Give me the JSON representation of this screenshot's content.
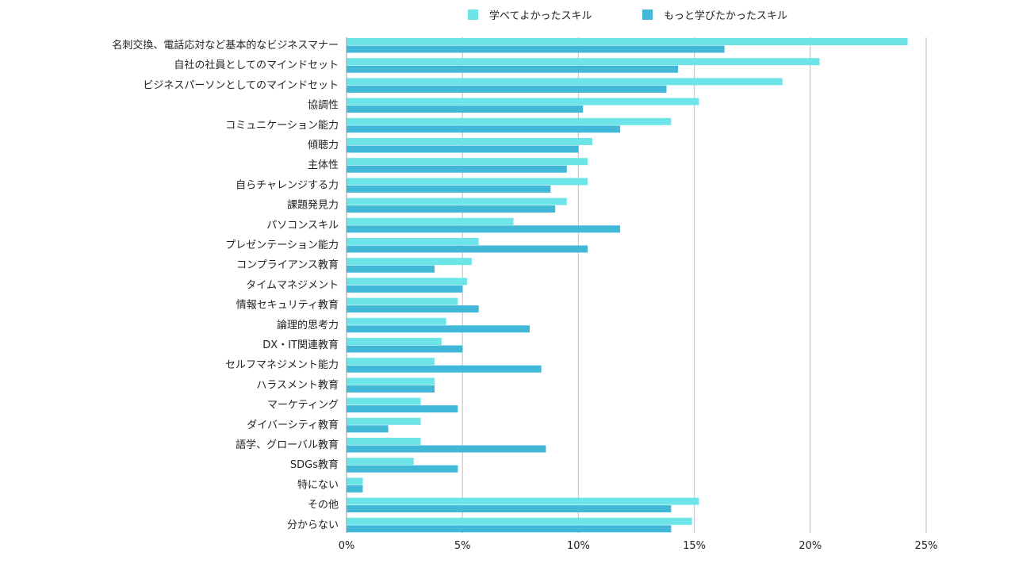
{
  "chart_data": {
    "type": "bar",
    "orientation": "horizontal",
    "title": "",
    "xlabel": "",
    "ylabel": "",
    "xlim": [
      0,
      25
    ],
    "grid": true,
    "legend_position": "top",
    "x_ticks": [
      0,
      5,
      10,
      15,
      20,
      25
    ],
    "x_tick_labels": [
      "0%",
      "5%",
      "10%",
      "15%",
      "20%",
      "25%"
    ],
    "categories": [
      "名刺交換、電話応対など基本的なビジネスマナー",
      "自社の社員としてのマインドセット",
      "ビジネスパーソンとしてのマインドセット",
      "協調性",
      "コミュニケーション能力",
      "傾聴力",
      "主体性",
      "自らチャレンジする力",
      "課題発見力",
      "パソコンスキル",
      "プレゼンテーション能力",
      "コンプライアンス教育",
      "タイムマネジメント",
      "情報セキュリティ教育",
      "論理的思考力",
      "DX・IT関連教育",
      "セルフマネジメント能力",
      "ハラスメント教育",
      "マーケティング",
      "ダイバーシティ教育",
      "語学、グローバル教育",
      "SDGs教育",
      "特にない",
      "その他",
      "分からない"
    ],
    "series": [
      {
        "name": "学べてよかったスキル",
        "color": "#6de5e8",
        "values": [
          24.2,
          20.4,
          18.8,
          15.2,
          14.0,
          10.6,
          10.4,
          10.4,
          9.5,
          7.2,
          5.7,
          5.4,
          5.2,
          4.8,
          4.3,
          4.1,
          3.8,
          3.8,
          3.2,
          3.2,
          3.2,
          2.9,
          0.7,
          15.2,
          14.9
        ]
      },
      {
        "name": "もっと学びたかったスキル",
        "color": "#42b8d8",
        "values": [
          16.3,
          14.3,
          13.8,
          10.2,
          11.8,
          10.0,
          9.5,
          8.8,
          9.0,
          11.8,
          10.4,
          3.8,
          5.0,
          5.7,
          7.9,
          5.0,
          8.4,
          3.8,
          4.8,
          1.8,
          8.6,
          4.8,
          0.7,
          14.0,
          14.0
        ]
      }
    ]
  }
}
